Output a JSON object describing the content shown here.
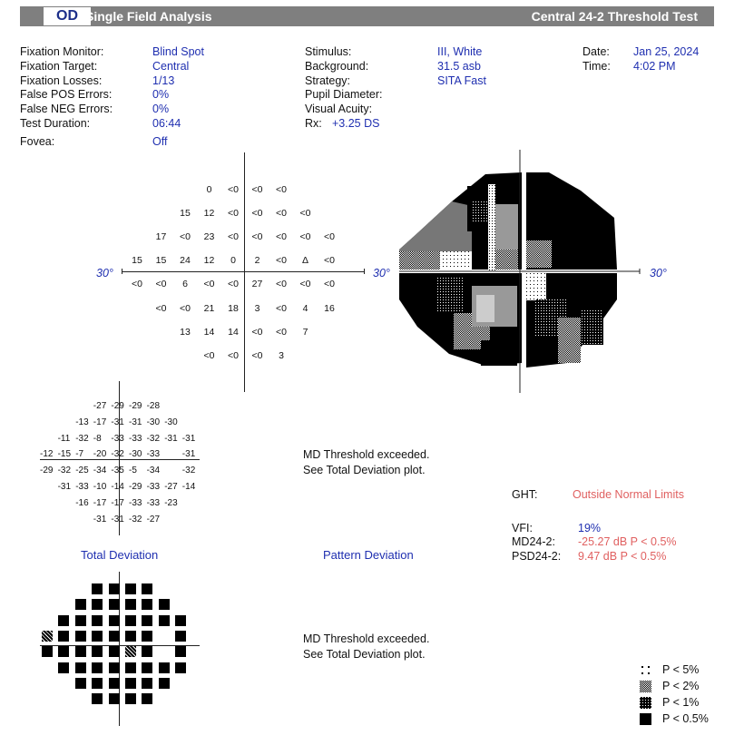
{
  "header": {
    "eye": "OD",
    "title": "Single Field Analysis",
    "test": "Central 24-2 Threshold Test"
  },
  "info_left": [
    {
      "label": "Fixation Monitor:",
      "value": "Blind Spot"
    },
    {
      "label": "Fixation Target:",
      "value": "Central"
    },
    {
      "label": "Fixation Losses:",
      "value": "1/13"
    },
    {
      "label": "False POS Errors:",
      "value": "0%"
    },
    {
      "label": "False NEG Errors:",
      "value": "0%"
    },
    {
      "label": "Test Duration:",
      "value": "06:44"
    },
    {
      "label": "Fovea:",
      "value": "Off"
    }
  ],
  "info_mid": [
    {
      "label": "Stimulus:",
      "value": "III, White"
    },
    {
      "label": "Background:",
      "value": "31.5 asb"
    },
    {
      "label": "Strategy:",
      "value": "SITA Fast"
    },
    {
      "label": "Pupil Diameter:",
      "value": ""
    },
    {
      "label": "Visual Acuity:",
      "value": ""
    },
    {
      "label": "Rx:",
      "value": "+3.25 DS"
    }
  ],
  "info_right": [
    {
      "label": "Date:",
      "value": "Jan 25, 2024"
    },
    {
      "label": "Time:",
      "value": "4:02 PM"
    }
  ],
  "threshold_grid": {
    "degree_label": "30°",
    "rows": [
      [
        "0",
        "<0",
        "<0",
        "<0"
      ],
      [
        "15",
        "12",
        "<0",
        "<0",
        "<0",
        "<0"
      ],
      [
        "17",
        "<0",
        "23",
        "<0",
        "<0",
        "<0",
        "<0",
        "<0"
      ],
      [
        "15",
        "15",
        "24",
        "12",
        "0",
        "2",
        "<0",
        "Δ",
        "<0"
      ],
      [
        "<0",
        "<0",
        "6",
        "<0",
        "<0",
        "27",
        "<0",
        "<0",
        "<0"
      ],
      [
        "<0",
        "<0",
        "21",
        "18",
        "3",
        "<0",
        "4",
        "16"
      ],
      [
        "13",
        "14",
        "14",
        "<0",
        "<0",
        "7"
      ],
      [
        "<0",
        "<0",
        "<0",
        "3"
      ]
    ]
  },
  "total_deviation": {
    "rows": [
      [
        "-27",
        "-29",
        "-29",
        "-28"
      ],
      [
        "-13",
        "-17",
        "-31",
        "-31",
        "-30",
        "-30"
      ],
      [
        "-11",
        "-32",
        "-8",
        "-33",
        "-33",
        "-32",
        "-31",
        "-31"
      ],
      [
        "-12",
        "-15",
        "-7",
        "-20",
        "-32",
        "-30",
        "-33",
        "",
        "-31"
      ],
      [
        "-29",
        "-32",
        "-25",
        "-34",
        "-35",
        "-5",
        "-34",
        "",
        "-32"
      ],
      [
        "-31",
        "-33",
        "-10",
        "-14",
        "-29",
        "-33",
        "-27",
        "-14"
      ],
      [
        "-16",
        "-17",
        "-17",
        "-33",
        "-33",
        "-23"
      ],
      [
        "-31",
        "-31",
        "-32",
        "-27"
      ]
    ],
    "title": "Total Deviation"
  },
  "pattern_deviation": {
    "title": "Pattern Deviation"
  },
  "messages": {
    "md_exceeded": "MD Threshold exceeded.",
    "see_total": "See Total Deviation plot."
  },
  "indices": {
    "ght_label": "GHT:",
    "ght_value": "Outside Normal Limits",
    "vfi_label": "VFI:",
    "vfi_value": "19%",
    "md_label": "MD24-2:",
    "md_value": "-25.27 dB P < 0.5%",
    "psd_label": "PSD24-2:",
    "psd_value": "9.47 dB P < 0.5%"
  },
  "legend": [
    {
      "symbol": "dots-icon",
      "text": "P < 5%"
    },
    {
      "symbol": "light-checker-icon",
      "text": "P < 2%"
    },
    {
      "symbol": "dense-checker-icon",
      "text": "P < 1%"
    },
    {
      "symbol": "solid-square-icon",
      "text": "P < 0.5%"
    }
  ],
  "probability_map": {
    "rows": [
      [
        "0.5",
        "0.5",
        "0.5",
        "0.5"
      ],
      [
        "0.5",
        "0.5",
        "0.5",
        "0.5",
        "0.5",
        "0.5"
      ],
      [
        "0.5",
        "0.5",
        "0.5",
        "0.5",
        "0.5",
        "0.5",
        "0.5",
        "0.5"
      ],
      [
        "1",
        "0.5",
        "0.5",
        "0.5",
        "0.5",
        "0.5",
        "0.5",
        "",
        "0.5"
      ],
      [
        "0.5",
        "0.5",
        "0.5",
        "0.5",
        "0.5",
        "1",
        "0.5",
        "",
        "0.5"
      ],
      [
        "0.5",
        "0.5",
        "0.5",
        "0.5",
        "0.5",
        "0.5",
        "0.5",
        "0.5"
      ],
      [
        "0.5",
        "0.5",
        "0.5",
        "0.5",
        "0.5",
        "0.5"
      ],
      [
        "0.5",
        "0.5",
        "0.5",
        "0.5"
      ]
    ]
  }
}
